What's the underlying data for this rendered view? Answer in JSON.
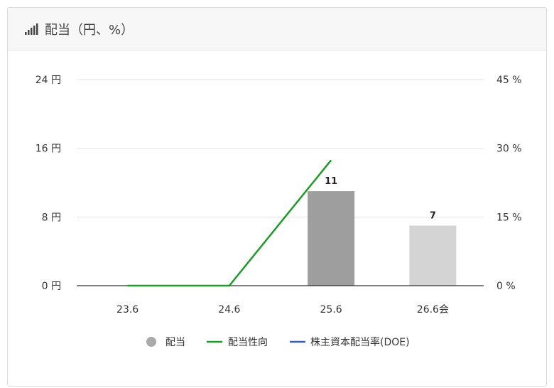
{
  "header": {
    "title": "配当（円、%）",
    "icon": "bar-signal-icon"
  },
  "chart_data": {
    "type": "bar+line",
    "categories": [
      "23.6",
      "24.6",
      "25.6",
      "26.6会"
    ],
    "series": [
      {
        "name": "配当",
        "type": "bar",
        "values": [
          null,
          null,
          11,
          7
        ],
        "colors": [
          "#9e9e9e",
          "#9e9e9e",
          "#9e9e9e",
          "#d4d4d4"
        ],
        "data_labels": [
          "",
          "",
          "11",
          "7"
        ]
      },
      {
        "name": "配当性向",
        "type": "line",
        "axis": "right",
        "values": [
          0,
          0,
          27.4,
          null
        ],
        "color": "#1f9a2a"
      },
      {
        "name": "株主資本配当率(DOE)",
        "type": "line",
        "axis": "right",
        "values": [
          null,
          null,
          null,
          null
        ],
        "color": "#3b5fb0"
      }
    ],
    "left_axis": {
      "ylim": [
        0,
        24
      ],
      "ticks": [
        "0 円",
        "8 円",
        "16 円",
        "24 円"
      ],
      "tick_values": [
        0,
        8,
        16,
        24
      ]
    },
    "right_axis": {
      "ylim": [
        0,
        45
      ],
      "ticks": [
        "0 %",
        "15 %",
        "30 %",
        "45 %"
      ],
      "tick_values": [
        0,
        15,
        30,
        45
      ]
    },
    "grid": true,
    "legend": "bottom"
  }
}
